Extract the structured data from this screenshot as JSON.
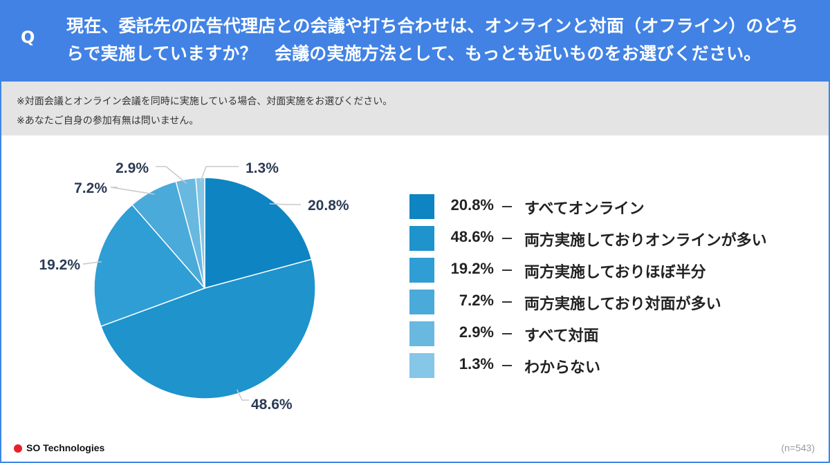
{
  "question": {
    "mark": "Q",
    "text": "現在、委託先の広告代理店との会議や打ち合わせは、オンラインと対面（オフライン）のどちらで実施していますか？　会議の実施方法として、もっとも近いものをお選びください。"
  },
  "notes": [
    "※対面会議とオンライン会議を同時に実施している場合、対面実施をお選びください。",
    "※あなたご自身の参加有無は問いません。"
  ],
  "chart_data": {
    "type": "pie",
    "start_angle_deg": 0,
    "direction": "clockwise",
    "slices": [
      {
        "label": "すべてオンライン",
        "value": 20.8,
        "value_text": "20.8%",
        "color": "#0e84c2"
      },
      {
        "label": "両方実施しておりオンラインが多い",
        "value": 48.6,
        "value_text": "48.6%",
        "color": "#1e93cc"
      },
      {
        "label": "両方実施しておりほぼ半分",
        "value": 19.2,
        "value_text": "19.2%",
        "color": "#2f9ed4"
      },
      {
        "label": "両方実施しており対面が多い",
        "value": 7.2,
        "value_text": "7.2%",
        "color": "#4aaad9"
      },
      {
        "label": "すべて対面",
        "value": 2.9,
        "value_text": "2.9%",
        "color": "#68b8e0"
      },
      {
        "label": "わからない",
        "value": 1.3,
        "value_text": "1.3%",
        "color": "#86c6e7"
      }
    ],
    "legend_position": "right",
    "legend_separator": "—"
  },
  "footer": {
    "brand": "SO Technologies",
    "brand_color": "#e8202a",
    "sample_size": "(n=543)"
  },
  "colors": {
    "header": "#4182e4",
    "note_bg": "#e4e4e4",
    "callout_text": "#2b3a55"
  }
}
